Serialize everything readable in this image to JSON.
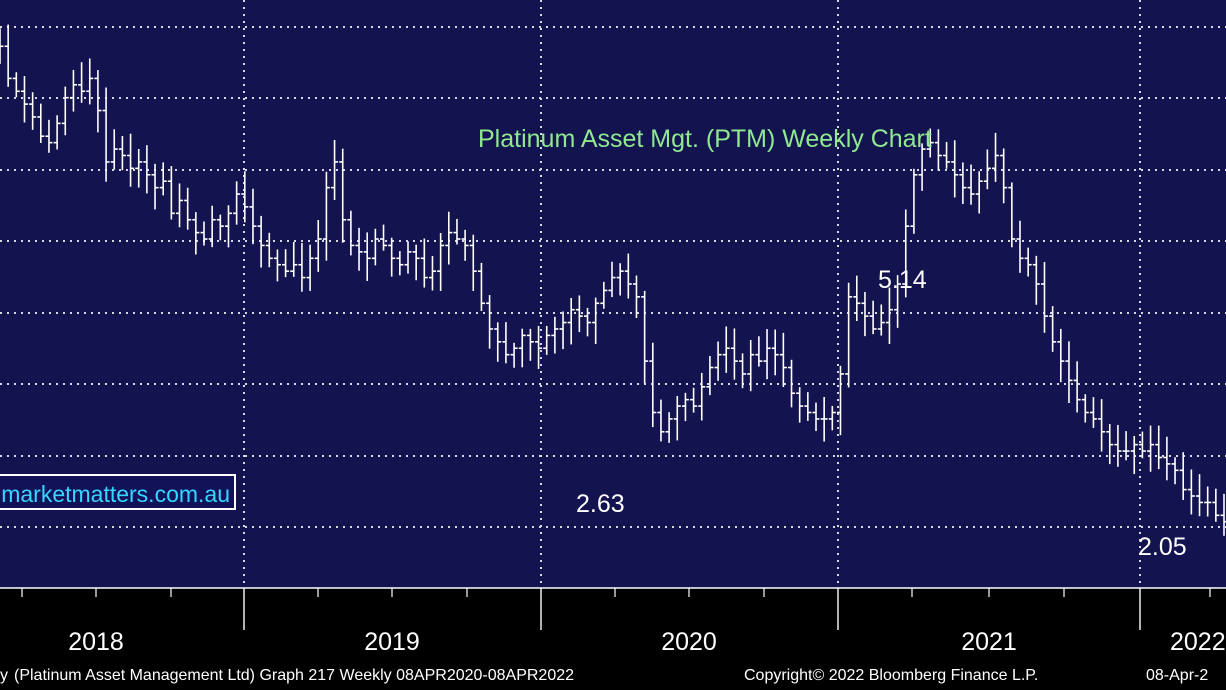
{
  "chart_data": {
    "type": "line",
    "style": "weekly-ohlc-bars",
    "title": "Platinum Asset Mgt. (PTM) Weekly Chart",
    "x_tick_labels": [
      "2018",
      "2019",
      "2020",
      "2021",
      "2022"
    ],
    "annotations": [
      {
        "text": "2.63",
        "date": "2020-03",
        "value": 2.63
      },
      {
        "text": "5.14",
        "date": "2021-01",
        "value": 5.14
      },
      {
        "text": "2.05",
        "date": "2022-03",
        "value": 2.05
      }
    ],
    "grid": true,
    "y_axis": "hidden",
    "series": [
      {
        "weekly_close": [
          5.85,
          5.6,
          5.5,
          5.4,
          5.3,
          5.15,
          5.1,
          5.25,
          5.45,
          5.55,
          5.5,
          5.6,
          5.35,
          4.95,
          5.05,
          5.0,
          4.9,
          4.95,
          4.85,
          4.75,
          4.8,
          4.55,
          4.65,
          4.5,
          4.4,
          4.35,
          4.5,
          4.45,
          4.55,
          4.7,
          4.6,
          4.45,
          4.3,
          4.2,
          4.15,
          4.1,
          4.15,
          4.05,
          4.2,
          4.35,
          4.75,
          4.95,
          4.5,
          4.3,
          4.25,
          4.2,
          4.35,
          4.3,
          4.2,
          4.15,
          4.25,
          4.2,
          4.05,
          4.1,
          4.3,
          4.4,
          4.35,
          4.3,
          4.1,
          3.85,
          3.65,
          3.55,
          3.45,
          3.5,
          3.6,
          3.55,
          3.5,
          3.6,
          3.65,
          3.7,
          3.8,
          3.75,
          3.7,
          3.85,
          3.95,
          4.05,
          4.1,
          4.0,
          3.9,
          3.4,
          3.0,
          2.85,
          2.95,
          3.05,
          3.1,
          3.05,
          3.2,
          3.35,
          3.45,
          3.5,
          3.4,
          3.3,
          3.45,
          3.4,
          3.5,
          3.45,
          3.35,
          3.15,
          3.05,
          3.0,
          2.95,
          2.95,
          3.0,
          3.3,
          3.9,
          3.85,
          3.75,
          3.65,
          3.7,
          3.8,
          4.0,
          4.45,
          4.85,
          5.05,
          5.1,
          5.0,
          4.95,
          4.85,
          4.75,
          4.7,
          4.8,
          4.9,
          5.0,
          4.75,
          4.35,
          4.2,
          4.15,
          4.0,
          3.75,
          3.55,
          3.4,
          3.25,
          3.1,
          3.0,
          2.95,
          2.85,
          2.75,
          2.7,
          2.7,
          2.75,
          2.7,
          2.75,
          2.65,
          2.6,
          2.55,
          2.4,
          2.35,
          2.3,
          2.3,
          2.2,
          2.15
        ]
      }
    ]
  },
  "watermark": "marketmatters.com.au",
  "footer": {
    "left": "(Platinum Asset Management Ltd) Graph 217  Weekly 08APR2020-08APR2022",
    "left_prefix": "y",
    "copyright": "Copyright© 2022 Bloomberg Finance L.P.",
    "date": "08-Apr-2"
  },
  "colors": {
    "plot_background": "#13134f",
    "title": "#90e890",
    "watermark_text": "#35d6ff",
    "price_bars": "#ffffff"
  }
}
